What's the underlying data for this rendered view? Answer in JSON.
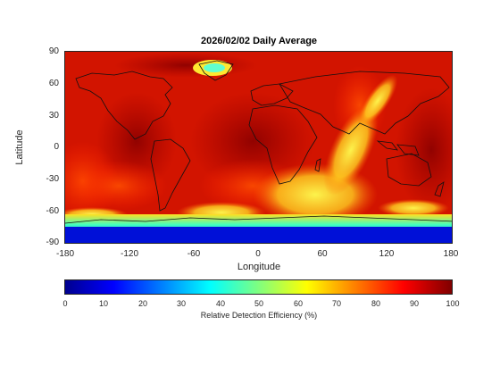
{
  "title": "2026/02/02 Daily Average",
  "x_axis": {
    "label": "Longitude",
    "ticks": [
      "-180",
      "-120",
      "-60",
      "0",
      "60",
      "120",
      "180"
    ]
  },
  "y_axis": {
    "label": "Latitude",
    "ticks": [
      "90",
      "60",
      "30",
      "0",
      "-30",
      "-60",
      "-90"
    ]
  },
  "colorbar": {
    "label": "Relative Detection Efficiency (%)",
    "ticks": [
      "0",
      "10",
      "20",
      "30",
      "40",
      "50",
      "60",
      "70",
      "80",
      "90",
      "100"
    ],
    "colormap": "jet",
    "range": [
      0,
      100
    ]
  },
  "map": {
    "lon_range": [
      -180,
      180
    ],
    "lat_range": [
      -90,
      90
    ],
    "dominant_value_description_colors": {
      "high": "#b40000",
      "mid": "#ff4000",
      "yellow": "#ffff40",
      "cyan": "#00e0ff",
      "low": "#0000cc"
    }
  }
}
